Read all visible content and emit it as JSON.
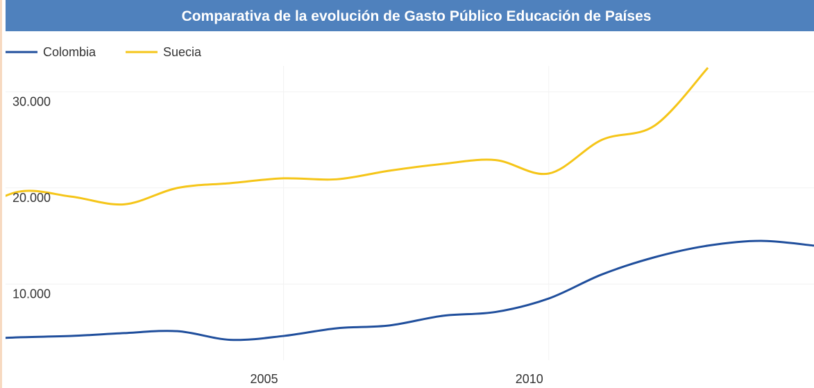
{
  "chart_data": {
    "type": "line",
    "title": "Comparativa de la evolución de Gasto Público Educación de Países",
    "x": [
      1999,
      2000,
      2001,
      2002,
      2003,
      2004,
      2005,
      2006,
      2007,
      2008,
      2009,
      2010,
      2011,
      2012,
      2013,
      2014,
      2015
    ],
    "series": [
      {
        "name": "Colombia",
        "color": "#1f4e9c",
        "values": [
          4200,
          4460,
          4600,
          4900,
          5100,
          4200,
          4600,
          5400,
          5700,
          6700,
          7100,
          8500,
          11000,
          12800,
          14000,
          14500,
          14000
        ]
      },
      {
        "name": "Suecia",
        "color": "#f5c518",
        "values": [
          17000,
          19600,
          19100,
          18300,
          20000,
          20500,
          21000,
          20900,
          21800,
          22500,
          22900,
          21500,
          25000,
          26500,
          32500,
          null,
          null
        ]
      }
    ],
    "xlim": [
      1999.76,
      2015
    ],
    "xticks": [
      2005,
      2010
    ],
    "ylim": [
      2077,
      32692
    ],
    "yticks": [
      {
        "value": 10000,
        "label": "10.000"
      },
      {
        "value": 20000,
        "label": "20.000"
      },
      {
        "value": 30000,
        "label": "30.000"
      }
    ],
    "grid": true,
    "legend": "top-left"
  }
}
